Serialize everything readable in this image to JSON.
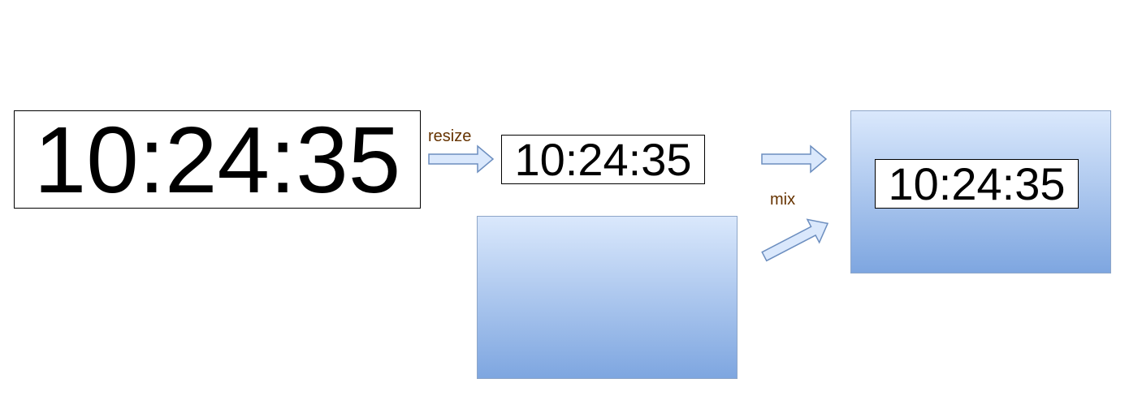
{
  "nodes": {
    "source_time": "10:24:35",
    "resized_time": "10:24:35",
    "mixed_time": "10:24:35"
  },
  "edges": {
    "resize_label": "resize",
    "mix_label": "mix"
  },
  "colors": {
    "arrow_fill": "#dae8fc",
    "arrow_stroke": "#6c8ebf",
    "gradient_top": "#dae8fc",
    "gradient_bottom": "#7ea6e0",
    "label_text": "#663300"
  },
  "icons": {
    "arrows": "block-arrow-icon"
  }
}
